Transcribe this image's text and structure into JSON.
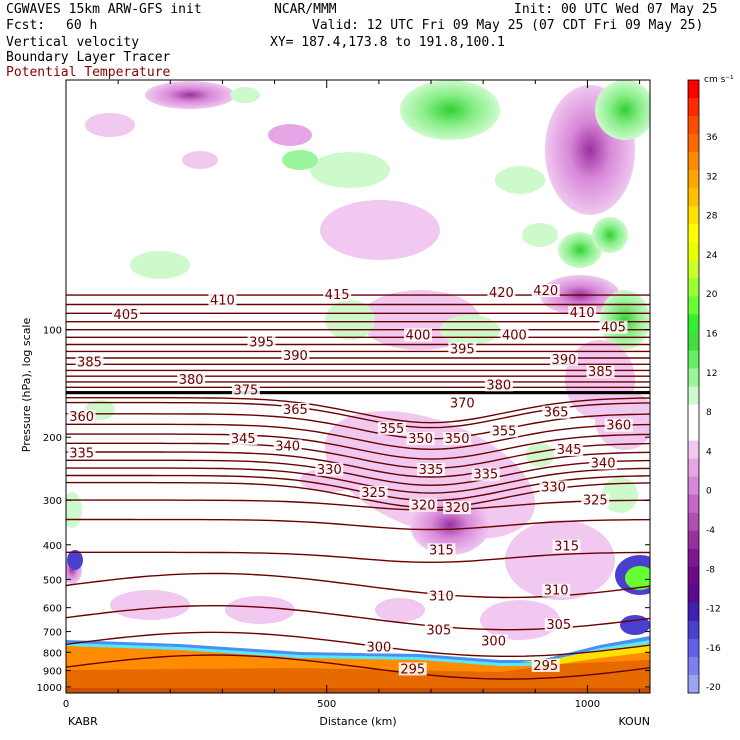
{
  "header": {
    "model": "CGWAVES 15km ARW-GFS init",
    "org": "NCAR/MMM",
    "init": "Init: 00 UTC Wed 07 May 25",
    "fcst_label": "Fcst:",
    "fcst_value": "60 h",
    "valid": "Valid: 12 UTC Fri 09 May 25 (07 CDT Fri 09 May 25)",
    "field1": "Vertical velocity",
    "field2": "Boundary Layer Tracer",
    "field3": "Potential Temperature",
    "xy": "XY= 187.4,173.8 to 191.8,100.1"
  },
  "colors": {
    "theta": "#6b0000",
    "field3_text": "#8b0000",
    "pbl_orange": "#ff8c00",
    "pbl_dark": "#e66a00",
    "pbl_yellow": "#ffe100"
  },
  "chart_data": {
    "type": "cross-section",
    "xlabel": "Distance (km)",
    "ylabel": "Pressure (hPa), log scale",
    "x_ticks": [
      "0",
      "500",
      "1000"
    ],
    "x_tick_values": [
      0,
      500,
      1000
    ],
    "xlim": [
      0,
      1120
    ],
    "y_ticks": [
      "100",
      "200",
      "300",
      "400",
      "500",
      "600",
      "700",
      "800",
      "900",
      "1000"
    ],
    "y_tick_values": [
      100,
      200,
      300,
      400,
      500,
      600,
      700,
      800,
      900,
      1000
    ],
    "ylim": [
      1040,
      20
    ],
    "y_scale": "log",
    "endpoints": {
      "left": "KABR",
      "right": "KOUN"
    },
    "colorbar": {
      "units": "cm s⁻¹",
      "labels": [
        "36",
        "32",
        "28",
        "24",
        "20",
        "16",
        "12",
        "8",
        "4",
        "0",
        "-4",
        "-8",
        "-12",
        "-16",
        "-20"
      ],
      "colors": [
        "#ff0000",
        "#ff2a00",
        "#ff4d00",
        "#ff6a00",
        "#ff8c00",
        "#ffa500",
        "#ffc000",
        "#ffe100",
        "#ffff00",
        "#e8ff00",
        "#c8ff2a",
        "#99ff33",
        "#66ff33",
        "#33f033",
        "#40e040",
        "#66ee66",
        "#99f599",
        "#ccfacc",
        "#ffffff",
        "#ffffff",
        "#f0c8f0",
        "#e6a5e6",
        "#d888d8",
        "#c866c8",
        "#b04eb4",
        "#9a30a0",
        "#7d1890",
        "#6a0a88",
        "#5a0a90",
        "#4020b0",
        "#4a40d0",
        "#6060e8",
        "#7e80f0",
        "#9aa4f5"
      ]
    },
    "theta_labels": [
      {
        "text": "410",
        "x": 300,
        "p": 84
      },
      {
        "text": "415",
        "x": 520,
        "p": 81
      },
      {
        "text": "420",
        "x": 835,
        "p": 80
      },
      {
        "text": "420",
        "x": 920,
        "p": 79
      },
      {
        "text": "405",
        "x": 115,
        "p": 92
      },
      {
        "text": "410",
        "x": 990,
        "p": 91
      },
      {
        "text": "405",
        "x": 1050,
        "p": 100
      },
      {
        "text": "395",
        "x": 375,
        "p": 110
      },
      {
        "text": "390",
        "x": 440,
        "p": 120
      },
      {
        "text": "400",
        "x": 675,
        "p": 105
      },
      {
        "text": "395",
        "x": 760,
        "p": 115
      },
      {
        "text": "400",
        "x": 860,
        "p": 105
      },
      {
        "text": "390",
        "x": 955,
        "p": 123
      },
      {
        "text": "385",
        "x": 45,
        "p": 125
      },
      {
        "text": "385",
        "x": 1025,
        "p": 133
      },
      {
        "text": "380",
        "x": 240,
        "p": 140
      },
      {
        "text": "375",
        "x": 345,
        "p": 150
      },
      {
        "text": "380",
        "x": 830,
        "p": 145
      },
      {
        "text": "370",
        "x": 760,
        "p": 163
      },
      {
        "text": "365",
        "x": 440,
        "p": 170
      },
      {
        "text": "365",
        "x": 940,
        "p": 173
      },
      {
        "text": "360",
        "x": 30,
        "p": 178
      },
      {
        "text": "360",
        "x": 1060,
        "p": 188
      },
      {
        "text": "355",
        "x": 625,
        "p": 192
      },
      {
        "text": "355",
        "x": 840,
        "p": 195
      },
      {
        "text": "345",
        "x": 340,
        "p": 205
      },
      {
        "text": "340",
        "x": 425,
        "p": 215
      },
      {
        "text": "350",
        "x": 680,
        "p": 205
      },
      {
        "text": "350",
        "x": 750,
        "p": 205
      },
      {
        "text": "345",
        "x": 965,
        "p": 220
      },
      {
        "text": "340",
        "x": 1030,
        "p": 240
      },
      {
        "text": "335",
        "x": 30,
        "p": 225
      },
      {
        "text": "330",
        "x": 505,
        "p": 250
      },
      {
        "text": "335",
        "x": 700,
        "p": 250
      },
      {
        "text": "335",
        "x": 805,
        "p": 258
      },
      {
        "text": "325",
        "x": 590,
        "p": 290
      },
      {
        "text": "330",
        "x": 935,
        "p": 280
      },
      {
        "text": "325",
        "x": 1015,
        "p": 305
      },
      {
        "text": "320",
        "x": 685,
        "p": 315
      },
      {
        "text": "320",
        "x": 750,
        "p": 320
      },
      {
        "text": "315",
        "x": 720,
        "p": 420
      },
      {
        "text": "315",
        "x": 960,
        "p": 410
      },
      {
        "text": "310",
        "x": 720,
        "p": 565
      },
      {
        "text": "310",
        "x": 940,
        "p": 545
      },
      {
        "text": "305",
        "x": 715,
        "p": 705
      },
      {
        "text": "305",
        "x": 945,
        "p": 680
      },
      {
        "text": "300",
        "x": 600,
        "p": 785
      },
      {
        "text": "300",
        "x": 820,
        "p": 755
      },
      {
        "text": "295",
        "x": 665,
        "p": 905
      },
      {
        "text": "295",
        "x": 920,
        "p": 885
      }
    ]
  }
}
